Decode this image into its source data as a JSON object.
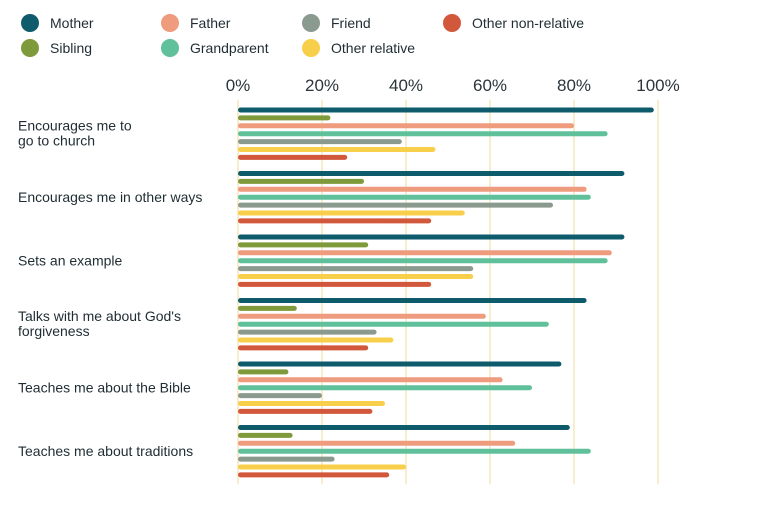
{
  "chart_data": {
    "type": "bar",
    "orientation": "horizontal",
    "title": "",
    "xlabel": "",
    "ylabel": "",
    "xlim": [
      0,
      100
    ],
    "x_ticks": [
      "0%",
      "20%",
      "40%",
      "60%",
      "80%",
      "100%"
    ],
    "grid": "vertical",
    "legend_position": "top",
    "categories": [
      "Encourages me to go to church",
      "Encourages me in other ways",
      "Sets an example",
      "Talks with me about God's forgiveness",
      "Teaches me about the Bible",
      "Teaches me about traditions"
    ],
    "category_lines": [
      [
        "Encourages me to",
        "go to church"
      ],
      [
        "Encourages me in other ways"
      ],
      [
        "Sets an example"
      ],
      [
        "Talks with me about God's",
        "forgiveness"
      ],
      [
        "Teaches me about the Bible"
      ],
      [
        "Teaches me about traditions"
      ]
    ],
    "series": [
      {
        "name": "Mother",
        "color": "#0e5b6b",
        "values": [
          99,
          92,
          92,
          83,
          77,
          79
        ]
      },
      {
        "name": "Sibling",
        "color": "#7e9a3a",
        "values": [
          22,
          30,
          31,
          14,
          12,
          13
        ]
      },
      {
        "name": "Father",
        "color": "#ee9b7e",
        "values": [
          80,
          83,
          89,
          59,
          63,
          66
        ]
      },
      {
        "name": "Grandparent",
        "color": "#5fc09a",
        "values": [
          88,
          84,
          88,
          74,
          70,
          84
        ]
      },
      {
        "name": "Friend",
        "color": "#8a9a8f",
        "values": [
          39,
          75,
          56,
          33,
          20,
          23
        ]
      },
      {
        "name": "Other relative",
        "color": "#f8cf4a",
        "values": [
          47,
          54,
          56,
          37,
          35,
          40
        ]
      },
      {
        "name": "Other non-relative",
        "color": "#d2583b",
        "values": [
          26,
          46,
          46,
          31,
          32,
          36
        ]
      }
    ],
    "legend_order": [
      "Mother",
      "Father",
      "Friend",
      "Other non-relative",
      "Sibling",
      "Grandparent",
      "Other relative"
    ]
  },
  "colors": {
    "gridline": "#f5e6bf",
    "text": "#1f2d33"
  }
}
